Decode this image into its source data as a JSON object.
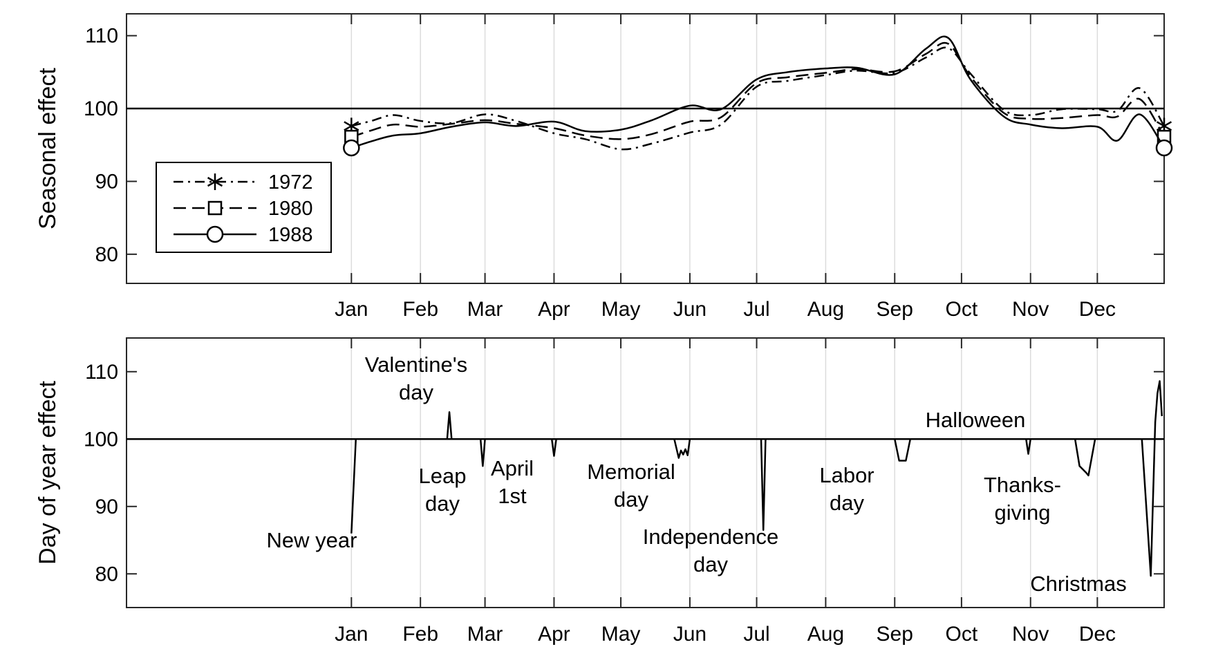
{
  "chart_data": [
    {
      "type": "line",
      "title": "",
      "ylabel": "Seasonal effect",
      "xlabel": "",
      "ylim": [
        76,
        113
      ],
      "yticks": [
        80,
        90,
        100,
        110
      ],
      "xticks": [
        "Jan",
        "Feb",
        "Mar",
        "Apr",
        "May",
        "Jun",
        "Jul",
        "Aug",
        "Sep",
        "Oct",
        "Nov",
        "Dec"
      ],
      "grid": "vertical",
      "reference_line": 100,
      "legend": {
        "placement": "middle-left",
        "entries": [
          "1972",
          "1980",
          "1988"
        ]
      },
      "series": [
        {
          "name": "1972",
          "marker": "asterisk",
          "dash": "dash-dot",
          "points": [
            [
              "Jan 1",
              97.6
            ],
            [
              "Jan 10",
              98.3
            ],
            [
              "Jan 20",
              99.1
            ],
            [
              "Feb 1",
              98.3
            ],
            [
              "Feb 15",
              98.0
            ],
            [
              "Mar 1",
              99.2
            ],
            [
              "Mar 15",
              98.3
            ],
            [
              "Apr 1",
              96.6
            ],
            [
              "Apr 15",
              95.8
            ],
            [
              "May 1",
              94.4
            ],
            [
              "May 15",
              95.2
            ],
            [
              "Jun 1",
              96.7
            ],
            [
              "Jun 15",
              97.8
            ],
            [
              "Jul 1",
              103.0
            ],
            [
              "Jul 15",
              103.8
            ],
            [
              "Aug 1",
              104.6
            ],
            [
              "Aug 15",
              105.2
            ],
            [
              "Sep 1",
              104.9
            ],
            [
              "Sep 15",
              107.0
            ],
            [
              "Sep 25",
              108.3
            ],
            [
              "Oct 5",
              104.8
            ],
            [
              "Oct 20",
              99.8
            ],
            [
              "Nov 1",
              99.1
            ],
            [
              "Nov 15",
              99.9
            ],
            [
              "Dec 1",
              99.9
            ],
            [
              "Dec 10",
              99.7
            ],
            [
              "Dec 20",
              102.8
            ],
            [
              "Dec 31",
              97.6
            ]
          ]
        },
        {
          "name": "1980",
          "marker": "square",
          "dash": "dashed",
          "points": [
            [
              "Jan 1",
              96.1
            ],
            [
              "Jan 10",
              97.0
            ],
            [
              "Jan 20",
              97.8
            ],
            [
              "Feb 1",
              97.5
            ],
            [
              "Feb 15",
              97.9
            ],
            [
              "Mar 1",
              98.4
            ],
            [
              "Mar 15",
              97.9
            ],
            [
              "Apr 1",
              97.3
            ],
            [
              "Apr 15",
              96.3
            ],
            [
              "May 1",
              95.8
            ],
            [
              "May 15",
              96.5
            ],
            [
              "Jun 1",
              98.2
            ],
            [
              "Jun 15",
              98.8
            ],
            [
              "Jul 1",
              103.5
            ],
            [
              "Jul 15",
              104.3
            ],
            [
              "Aug 1",
              104.9
            ],
            [
              "Aug 15",
              105.4
            ],
            [
              "Sep 1",
              105.1
            ],
            [
              "Sep 15",
              107.5
            ],
            [
              "Sep 25",
              108.9
            ],
            [
              "Oct 5",
              104.4
            ],
            [
              "Oct 20",
              99.4
            ],
            [
              "Nov 1",
              98.6
            ],
            [
              "Nov 15",
              98.7
            ],
            [
              "Dec 1",
              99.1
            ],
            [
              "Dec 10",
              98.9
            ],
            [
              "Dec 20",
              101.3
            ],
            [
              "Dec 31",
              96.1
            ]
          ]
        },
        {
          "name": "1988",
          "marker": "circle",
          "dash": "solid",
          "points": [
            [
              "Jan 1",
              94.6
            ],
            [
              "Jan 10",
              95.5
            ],
            [
              "Jan 20",
              96.3
            ],
            [
              "Feb 1",
              96.6
            ],
            [
              "Feb 15",
              97.5
            ],
            [
              "Mar 1",
              98.1
            ],
            [
              "Mar 15",
              97.6
            ],
            [
              "Apr 1",
              98.2
            ],
            [
              "Apr 15",
              96.9
            ],
            [
              "May 1",
              97.1
            ],
            [
              "May 15",
              98.4
            ],
            [
              "Jun 1",
              100.4
            ],
            [
              "Jun 15",
              99.9
            ],
            [
              "Jul 1",
              104.0
            ],
            [
              "Jul 15",
              105.0
            ],
            [
              "Aug 1",
              105.5
            ],
            [
              "Aug 15",
              105.6
            ],
            [
              "Sep 1",
              104.7
            ],
            [
              "Sep 15",
              108.2
            ],
            [
              "Sep 25",
              109.7
            ],
            [
              "Oct 5",
              104.0
            ],
            [
              "Oct 20",
              98.9
            ],
            [
              "Nov 1",
              97.8
            ],
            [
              "Nov 15",
              97.3
            ],
            [
              "Dec 1",
              97.5
            ],
            [
              "Dec 10",
              95.6
            ],
            [
              "Dec 20",
              99.2
            ],
            [
              "Dec 31",
              94.6
            ]
          ]
        }
      ]
    },
    {
      "type": "line",
      "title": "",
      "ylabel": "Day of year effect",
      "xlabel": "",
      "ylim": [
        75,
        115
      ],
      "yticks": [
        80,
        90,
        100,
        110
      ],
      "xticks": [
        "Jan",
        "Feb",
        "Mar",
        "Apr",
        "May",
        "Jun",
        "Jul",
        "Aug",
        "Sep",
        "Oct",
        "Nov",
        "Dec"
      ],
      "grid": "vertical",
      "reference_line": 100,
      "series": [
        {
          "points": [
            [
              "Jan 1",
              86.0
            ],
            [
              "Jan 3",
              100
            ],
            [
              "Feb 13",
              100
            ],
            [
              "Feb 14",
              104.0
            ],
            [
              "Feb 15",
              100
            ],
            [
              "Feb 28",
              100
            ],
            [
              "Feb 29",
              96.0
            ],
            [
              "Mar 1",
              100
            ],
            [
              "Mar 31",
              100
            ],
            [
              "Apr 1",
              97.5
            ],
            [
              "Apr 2",
              100
            ],
            [
              "May 25",
              100
            ],
            [
              "May 27",
              97.2
            ],
            [
              "May 28",
              98.3
            ],
            [
              "May 29",
              97.7
            ],
            [
              "May 30",
              98.5
            ],
            [
              "May 31",
              97.6
            ],
            [
              "Jun 1",
              100
            ],
            [
              "Jul 3",
              100
            ],
            [
              "Jul 4",
              86.5
            ],
            [
              "Jul 5",
              100
            ],
            [
              "Sep 1",
              100
            ],
            [
              "Sep 3",
              96.8
            ],
            [
              "Sep 6",
              96.8
            ],
            [
              "Sep 8",
              100
            ],
            [
              "Oct 30",
              100
            ],
            [
              "Oct 31",
              97.8
            ],
            [
              "Nov 1",
              100
            ],
            [
              "Nov 21",
              100
            ],
            [
              "Nov 23",
              96.0
            ],
            [
              "Nov 26",
              95.0
            ],
            [
              "Nov 27",
              94.6
            ],
            [
              "Nov 30",
              100
            ],
            [
              "Dec 21",
              100
            ],
            [
              "Dec 25",
              79.7
            ],
            [
              "Dec 27",
              102.5
            ],
            [
              "Dec 28",
              106.8
            ],
            [
              "Dec 29",
              108.6
            ],
            [
              "Dec 30",
              103.4
            ]
          ]
        }
      ],
      "annotations": [
        {
          "text": [
            "New year"
          ]
        },
        {
          "text": [
            "Valentine's",
            "day"
          ]
        },
        {
          "text": [
            "Leap",
            "day"
          ]
        },
        {
          "text": [
            "April",
            "1st"
          ]
        },
        {
          "text": [
            "Memorial",
            "day"
          ]
        },
        {
          "text": [
            "Independence",
            "day"
          ]
        },
        {
          "text": [
            "Labor",
            "day"
          ]
        },
        {
          "text": [
            "Halloween"
          ]
        },
        {
          "text": [
            "Thanks-",
            "giving"
          ]
        },
        {
          "text": [
            "Christmas"
          ]
        }
      ]
    }
  ]
}
